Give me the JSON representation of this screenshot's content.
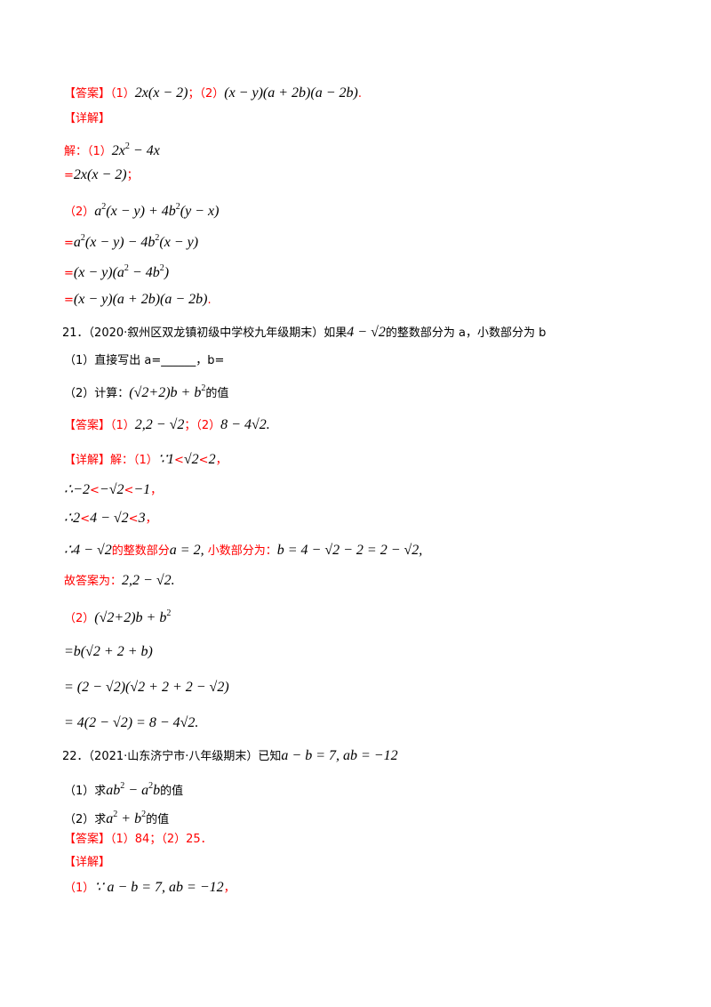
{
  "lines": [
    {
      "segs": [
        {
          "t": "【答案】",
          "c": "red"
        },
        {
          "t": "（1）",
          "c": "red"
        },
        {
          "t": "2x(x − 2)",
          "m": 1
        },
        {
          "t": "；",
          "c": "red"
        },
        {
          "t": "（2）",
          "c": "red"
        },
        {
          "t": "(x − y)(a + 2b)(a − 2b)",
          "m": 1
        },
        {
          "t": ".",
          "c": "red"
        }
      ]
    },
    {
      "segs": [
        {
          "t": "【详解】",
          "c": "red"
        }
      ]
    },
    {
      "segs": [
        {
          "t": "解：（1）",
          "c": "red"
        },
        {
          "t": "2x",
          "m": 1
        },
        {
          "t": "2",
          "s": 1
        },
        {
          "t": " − 4x",
          "m": 1
        }
      ]
    },
    {
      "segs": [
        {
          "t": "=",
          "c": "red"
        },
        {
          "t": "2x(x − 2)",
          "m": 1
        },
        {
          "t": "；",
          "c": "red"
        }
      ]
    },
    {
      "segs": [
        {
          "t": "（2）",
          "c": "red"
        },
        {
          "t": "a",
          "m": 1
        },
        {
          "t": "2",
          "s": 1
        },
        {
          "t": "(x − y) + 4b",
          "m": 1
        },
        {
          "t": "2",
          "s": 1
        },
        {
          "t": "(y − x)",
          "m": 1
        }
      ]
    },
    {
      "segs": [
        {
          "t": "=",
          "c": "red"
        },
        {
          "t": "a",
          "m": 1
        },
        {
          "t": "2",
          "s": 1
        },
        {
          "t": "(x − y) − 4b",
          "m": 1
        },
        {
          "t": "2",
          "s": 1
        },
        {
          "t": "(x − y)",
          "m": 1
        }
      ]
    },
    {
      "segs": [
        {
          "t": "=",
          "c": "red"
        },
        {
          "t": "(x − y)(a",
          "m": 1
        },
        {
          "t": "2",
          "s": 1
        },
        {
          "t": " − 4b",
          "m": 1
        },
        {
          "t": "2",
          "s": 1
        },
        {
          "t": ")",
          "m": 1
        }
      ]
    },
    {
      "segs": [
        {
          "t": "=",
          "c": "red"
        },
        {
          "t": "(x − y)(a + 2b)(a − 2b)",
          "m": 1
        },
        {
          "t": ".",
          "c": "red"
        }
      ]
    },
    {
      "segs": [
        {
          "t": "21．（2020·叙州区双龙镇初级中学校九年级期末）如果"
        },
        {
          "t": "4 − √2",
          "m": 1
        },
        {
          "t": "的整数部分为 a，小数部分为 b"
        }
      ]
    },
    {
      "segs": [
        {
          "t": "（1）直接写出 a=______，b="
        }
      ]
    },
    {
      "segs": [
        {
          "t": "（2）计算："
        },
        {
          "t": "(√2+2)b + b",
          "m": 1
        },
        {
          "t": "2",
          "s": 1
        },
        {
          "t": "的值"
        }
      ]
    },
    {
      "segs": [
        {
          "t": "【答案】（1）",
          "c": "red"
        },
        {
          "t": "2,2 − √2",
          "m": 1
        },
        {
          "t": "；（2）",
          "c": "red"
        },
        {
          "t": "8 − 4√2.",
          "m": 1
        }
      ]
    },
    {
      "segs": [
        {
          "t": "【详解】解：（1）",
          "c": "red"
        },
        {
          "t": "∵1",
          "m": 1
        },
        {
          "t": "<",
          "c": "red"
        },
        {
          "t": "√2",
          "m": 1
        },
        {
          "t": "<",
          "c": "red"
        },
        {
          "t": "2",
          "m": 1
        },
        {
          "t": "，",
          "c": "red"
        }
      ]
    },
    {
      "segs": [
        {
          "t": "∴−2",
          "m": 1
        },
        {
          "t": "<",
          "c": "red"
        },
        {
          "t": "−√2",
          "m": 1
        },
        {
          "t": "<",
          "c": "red"
        },
        {
          "t": "−1",
          "m": 1
        },
        {
          "t": "，",
          "c": "red"
        }
      ]
    },
    {
      "segs": [
        {
          "t": "∴2",
          "m": 1
        },
        {
          "t": "<",
          "c": "red"
        },
        {
          "t": "4 − √2",
          "m": 1
        },
        {
          "t": "<",
          "c": "red"
        },
        {
          "t": "3",
          "m": 1
        },
        {
          "t": "，",
          "c": "red"
        }
      ]
    },
    {
      "segs": [
        {
          "t": "∴4 − √2",
          "m": 1
        },
        {
          "t": "的整数部分",
          "c": "red"
        },
        {
          "t": "a = 2,",
          "m": 1
        },
        {
          "t": " 小数部分为：",
          "c": "red"
        },
        {
          "t": "b = 4 − √2 − 2 = 2 − √2,",
          "m": 1
        }
      ]
    },
    {
      "segs": [
        {
          "t": "故答案为：",
          "c": "red"
        },
        {
          "t": "2,2 − √2.",
          "m": 1
        }
      ]
    },
    {
      "segs": [
        {
          "t": "（2）",
          "c": "red"
        },
        {
          "t": "(√2+2)b + b",
          "m": 1
        },
        {
          "t": "2",
          "s": 1
        }
      ]
    },
    {
      "segs": [
        {
          "t": "=b(√2 + 2 + b)",
          "m": 1
        }
      ]
    },
    {
      "segs": [
        {
          "t": "= (2 − √2)(√2 + 2 + 2 − √2)",
          "m": 1
        }
      ]
    },
    {
      "segs": [
        {
          "t": "= 4(2 − √2) = 8 − 4√2.",
          "m": 1
        }
      ]
    },
    {
      "segs": [
        {
          "t": "22．（2021·山东济宁市·八年级期末）已知"
        },
        {
          "t": "a − b = 7, ab = −12",
          "m": 1
        }
      ]
    },
    {
      "segs": [
        {
          "t": "（1）求"
        },
        {
          "t": "ab",
          "m": 1
        },
        {
          "t": "2",
          "s": 1
        },
        {
          "t": " − a",
          "m": 1
        },
        {
          "t": "2",
          "s": 1
        },
        {
          "t": "b",
          "m": 1
        },
        {
          "t": "的值"
        }
      ]
    },
    {
      "segs": [
        {
          "t": "（2）求"
        },
        {
          "t": "a",
          "m": 1
        },
        {
          "t": "2",
          "s": 1
        },
        {
          "t": " + b",
          "m": 1
        },
        {
          "t": "2",
          "s": 1
        },
        {
          "t": "的值"
        }
      ]
    },
    {
      "segs": [
        {
          "t": "【答案】（1）84；（2）25．",
          "c": "red"
        }
      ]
    },
    {
      "segs": [
        {
          "t": "【详解】",
          "c": "red"
        }
      ]
    },
    {
      "segs": [
        {
          "t": "（1）",
          "c": "red"
        },
        {
          "t": "∵ a − b = 7, ab = −12",
          "m": 1
        },
        {
          "t": "，",
          "c": "red"
        }
      ]
    }
  ]
}
